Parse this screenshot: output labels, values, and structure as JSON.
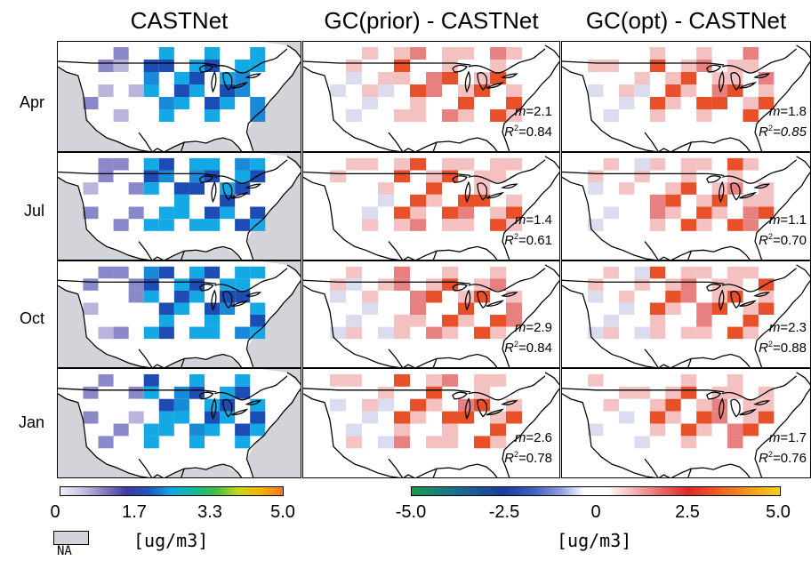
{
  "columns": [
    {
      "title": "CASTNet"
    },
    {
      "title": "GC(prior) - CASTNet"
    },
    {
      "title": "GC(opt) - CASTNet"
    }
  ],
  "rows": [
    {
      "label": "Apr",
      "prior": {
        "m": "=2.1",
        "r2": "=0.84"
      },
      "opt": {
        "m": "=1.8",
        "r2": "=0.85"
      }
    },
    {
      "label": "Jul",
      "prior": {
        "m": "=1.4",
        "r2": "=0.61"
      },
      "opt": {
        "m": "=1.1",
        "r2": "=0.70"
      }
    },
    {
      "label": "Oct",
      "prior": {
        "m": "=2.9",
        "r2": "=0.84"
      },
      "opt": {
        "m": "=2.3",
        "r2": "=0.88"
      }
    },
    {
      "label": "Jan",
      "prior": {
        "m": "=2.6",
        "r2": "=0.78"
      },
      "opt": {
        "m": "=1.7",
        "r2": "=0.76"
      }
    }
  ],
  "stat_labels": {
    "m": "m",
    "r": "R",
    "sup": "2"
  },
  "colorbar_left": {
    "ticks": [
      "0",
      "1.7",
      "3.3",
      "5.0"
    ],
    "unit": "[ug/m3]",
    "na_label": "NA",
    "na_color": "#d2d4d9"
  },
  "colorbar_right": {
    "ticks": [
      "-5.0",
      "-2.5",
      "0",
      "2.5",
      "5.0"
    ],
    "unit": "[ug/m3]"
  },
  "colors": {
    "background": "#d2d4d9",
    "land": "#ffffff"
  }
}
